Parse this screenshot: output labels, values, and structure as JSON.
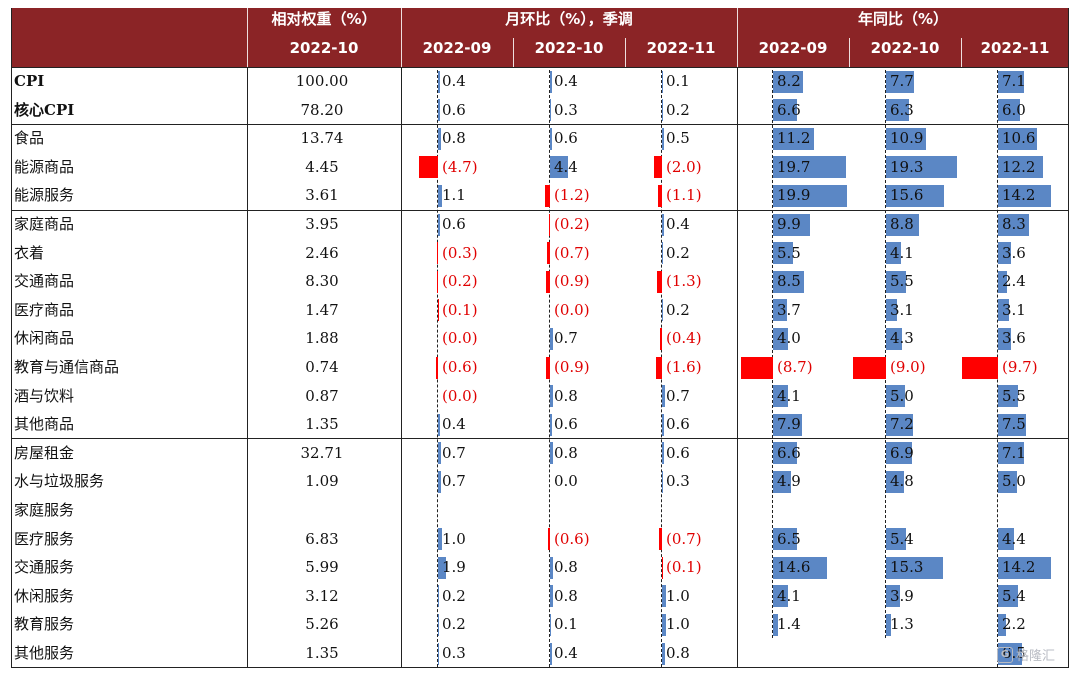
{
  "header": {
    "weight_title": "相对权重（%）",
    "mom_title": "月环比（%），季调",
    "yoy_title": "年同比（%）",
    "weight_period": "2022-10",
    "mom_periods": [
      "2022-09",
      "2022-10",
      "2022-11"
    ],
    "yoy_periods": [
      "2022-09",
      "2022-10",
      "2022-11"
    ]
  },
  "colors": {
    "header_bg": "#8b2426",
    "pos_bar": "#5b87c5",
    "neg_bar": "#ff0000",
    "neg_text": "#e00000"
  },
  "watermark": {
    "badge": "G",
    "text": "格隆汇"
  },
  "chart_data": {
    "type": "table",
    "columns": [
      "相对权重（%） 2022-10",
      "月环比 2022-09",
      "月环比 2022-10",
      "月环比 2022-11",
      "年同比 2022-09",
      "年同比 2022-10",
      "年同比 2022-11"
    ],
    "rows": [
      {
        "name": "CPI",
        "bold": true,
        "weight": "100.00",
        "mom": [
          0.4,
          0.4,
          0.1
        ],
        "yoy": [
          8.2,
          7.7,
          7.1
        ]
      },
      {
        "name": "核心CPI",
        "bold": true,
        "weight": "78.20",
        "mom": [
          0.6,
          0.3,
          0.2
        ],
        "yoy": [
          6.6,
          6.3,
          6.0
        ]
      },
      {
        "name": "食品",
        "weight": "13.74",
        "mom": [
          0.8,
          0.6,
          0.5
        ],
        "yoy": [
          11.2,
          10.9,
          10.6
        ]
      },
      {
        "name": "能源商品",
        "weight": "4.45",
        "mom": [
          -4.7,
          4.4,
          -2.0
        ],
        "yoy": [
          19.7,
          19.3,
          12.2
        ]
      },
      {
        "name": "能源服务",
        "weight": "3.61",
        "mom": [
          1.1,
          -1.2,
          -1.1
        ],
        "yoy": [
          19.9,
          15.6,
          14.2
        ]
      },
      {
        "name": "家庭商品",
        "weight": "3.95",
        "mom": [
          0.6,
          -0.2,
          0.4
        ],
        "yoy": [
          9.9,
          8.8,
          8.3
        ]
      },
      {
        "name": "衣着",
        "weight": "2.46",
        "mom": [
          -0.3,
          -0.7,
          0.2
        ],
        "yoy": [
          5.5,
          4.1,
          3.6
        ]
      },
      {
        "name": "交通商品",
        "weight": "8.30",
        "mom": [
          -0.2,
          -0.9,
          -1.3
        ],
        "yoy": [
          8.5,
          5.5,
          2.4
        ]
      },
      {
        "name": "医疗商品",
        "weight": "1.47",
        "mom": [
          -0.1,
          -0.0,
          0.2
        ],
        "yoy": [
          3.7,
          3.1,
          3.1
        ]
      },
      {
        "name": "休闲商品",
        "weight": "1.88",
        "mom": [
          -0.0,
          0.7,
          -0.4
        ],
        "yoy": [
          4.0,
          4.3,
          3.6
        ]
      },
      {
        "name": "教育与通信商品",
        "weight": "0.74",
        "mom": [
          -0.6,
          -0.9,
          -1.6
        ],
        "yoy": [
          -8.7,
          -9.0,
          -9.7
        ]
      },
      {
        "name": "酒与饮料",
        "weight": "0.87",
        "mom": [
          -0.0,
          0.8,
          0.7
        ],
        "yoy": [
          4.1,
          5.0,
          5.5
        ]
      },
      {
        "name": "其他商品",
        "weight": "1.35",
        "mom": [
          0.4,
          0.6,
          0.6
        ],
        "yoy": [
          7.9,
          7.2,
          7.5
        ]
      },
      {
        "name": "房屋租金",
        "weight": "32.71",
        "mom": [
          0.7,
          0.8,
          0.6
        ],
        "yoy": [
          6.6,
          6.9,
          7.1
        ]
      },
      {
        "name": "水与垃圾服务",
        "weight": "1.09",
        "mom": [
          0.7,
          0.0,
          0.3
        ],
        "yoy": [
          4.9,
          4.8,
          5.0
        ]
      },
      {
        "name": "家庭服务",
        "weight": "",
        "mom": [
          null,
          null,
          null
        ],
        "yoy": [
          null,
          null,
          null
        ]
      },
      {
        "name": "医疗服务",
        "weight": "6.83",
        "mom": [
          1.0,
          -0.6,
          -0.7
        ],
        "yoy": [
          6.5,
          5.4,
          4.4
        ]
      },
      {
        "name": "交通服务",
        "weight": "5.99",
        "mom": [
          1.9,
          0.8,
          -0.1
        ],
        "yoy": [
          14.6,
          15.3,
          14.2
        ]
      },
      {
        "name": "休闲服务",
        "weight": "3.12",
        "mom": [
          0.2,
          0.8,
          1.0
        ],
        "yoy": [
          4.1,
          3.9,
          5.4
        ]
      },
      {
        "name": "教育服务",
        "weight": "5.26",
        "mom": [
          0.2,
          0.1,
          1.0
        ],
        "yoy": [
          1.4,
          1.3,
          2.2
        ]
      },
      {
        "name": "其他服务",
        "weight": "1.35",
        "mom": [
          0.3,
          0.4,
          0.8
        ],
        "yoy": [
          null,
          null,
          6.5
        ]
      }
    ]
  }
}
